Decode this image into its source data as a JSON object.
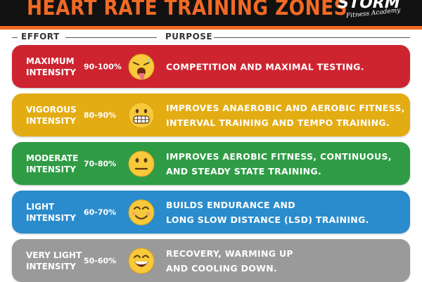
{
  "header": {
    "title": "HEART RATE TRAINING ZONES",
    "logo_main": "STORM",
    "logo_sub": "Fitness Academy"
  },
  "columns": {
    "effort": "EFFORT",
    "purpose": "PURPOSE"
  },
  "zones": [
    {
      "effort_line1": "MAXIMUM",
      "effort_line2": "INTENSITY",
      "range": "90-100%",
      "purpose_line1": "COMPETITION AND MAXIMAL TESTING.",
      "purpose_line2": "",
      "color": "#cd2430",
      "icon": "exhausted-face-icon"
    },
    {
      "effort_line1": "VIGOROUS",
      "effort_line2": "INTENSITY",
      "range": "80-90%",
      "purpose_line1": "IMPROVES ANAEROBIC AND AEROBIC FITNESS,",
      "purpose_line2": "INTERVAL TRAINING AND TEMPO TRAINING.",
      "color": "#e3ac12",
      "icon": "grimacing-face-icon"
    },
    {
      "effort_line1": "MODERATE",
      "effort_line2": "INTENSITY",
      "range": "70-80%",
      "purpose_line1": "IMPROVES AEROBIC FITNESS, CONTINUOUS,",
      "purpose_line2": "AND STEADY STATE TRAINING.",
      "color": "#2f9c45",
      "icon": "neutral-face-icon"
    },
    {
      "effort_line1": "LIGHT",
      "effort_line2": "INTENSITY",
      "range": "60-70%",
      "purpose_line1": "BUILDS ENDURANCE AND",
      "purpose_line2": "LONG SLOW DISTANCE (LSD) TRAINING.",
      "color": "#2a8ccc",
      "icon": "smiling-face-icon"
    },
    {
      "effort_line1": "VERY LIGHT",
      "effort_line2": "INTENSITY",
      "range": "50-60%",
      "purpose_line1": "RECOVERY, WARMING UP",
      "purpose_line2": "AND COOLING DOWN.",
      "color": "#9a9a9a",
      "icon": "grinning-face-icon"
    }
  ]
}
